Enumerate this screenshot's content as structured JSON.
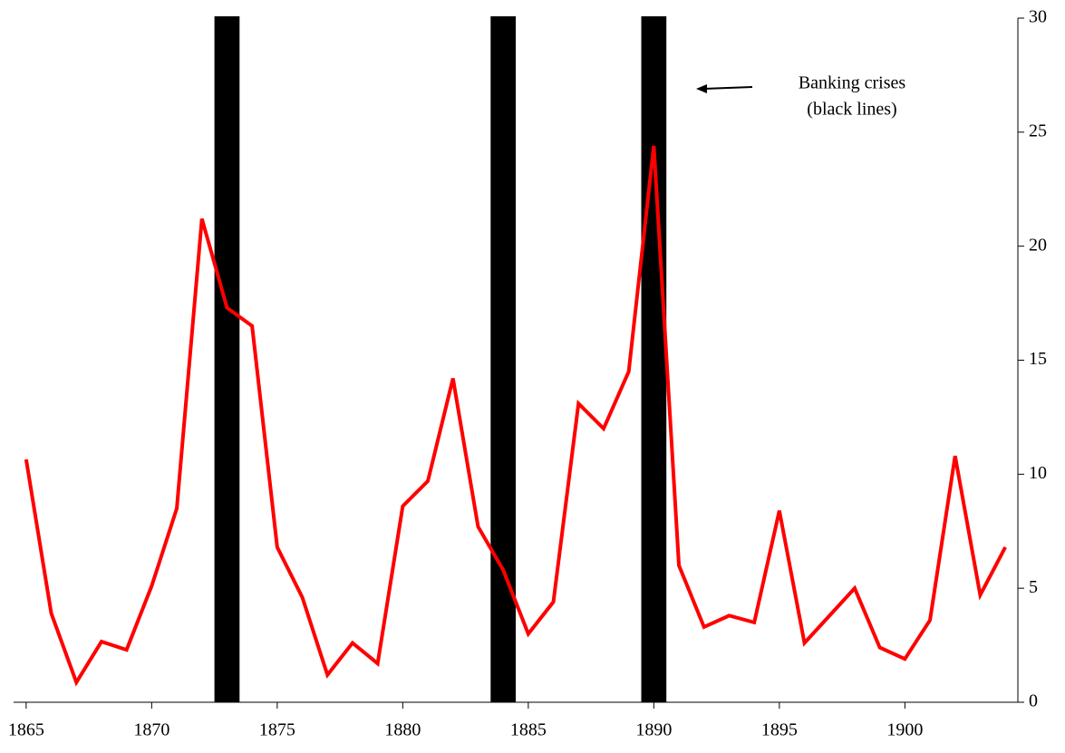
{
  "chart_data": {
    "type": "line",
    "x": [
      1865,
      1866,
      1867,
      1868,
      1869,
      1870,
      1871,
      1872,
      1873,
      1874,
      1875,
      1876,
      1877,
      1878,
      1879,
      1880,
      1881,
      1882,
      1883,
      1884,
      1885,
      1886,
      1887,
      1888,
      1889,
      1890,
      1891,
      1892,
      1893,
      1894,
      1895,
      1896,
      1897,
      1898,
      1899,
      1900,
      1901,
      1902,
      1903,
      1904
    ],
    "series": [
      {
        "color": "#ff0000",
        "values": [
          10.65,
          3.9,
          0.87,
          2.66,
          2.3,
          5.1,
          8.5,
          21.2,
          17.3,
          16.5,
          6.8,
          4.6,
          1.2,
          2.6,
          1.7,
          8.6,
          9.7,
          14.2,
          7.7,
          5.8,
          3.0,
          4.4,
          13.1,
          12.0,
          14.5,
          24.4,
          6.0,
          3.3,
          3.8,
          3.5,
          8.4,
          2.6,
          3.8,
          5.0,
          2.4,
          1.9,
          3.6,
          10.8,
          4.7,
          6.8
        ]
      }
    ],
    "crises": [
      1873,
      1884,
      1890
    ],
    "crisis_color": "#000000",
    "annotation": [
      "Banking crises",
      "(black lines)"
    ],
    "xlim": [
      1864.5,
      1904.5
    ],
    "xticks": [
      1865,
      1870,
      1875,
      1880,
      1885,
      1890,
      1895,
      1900
    ],
    "ylim": [
      0,
      30
    ],
    "yticks": [
      0,
      5,
      10,
      15,
      20,
      25,
      30
    ],
    "y_axis_side": "right"
  }
}
